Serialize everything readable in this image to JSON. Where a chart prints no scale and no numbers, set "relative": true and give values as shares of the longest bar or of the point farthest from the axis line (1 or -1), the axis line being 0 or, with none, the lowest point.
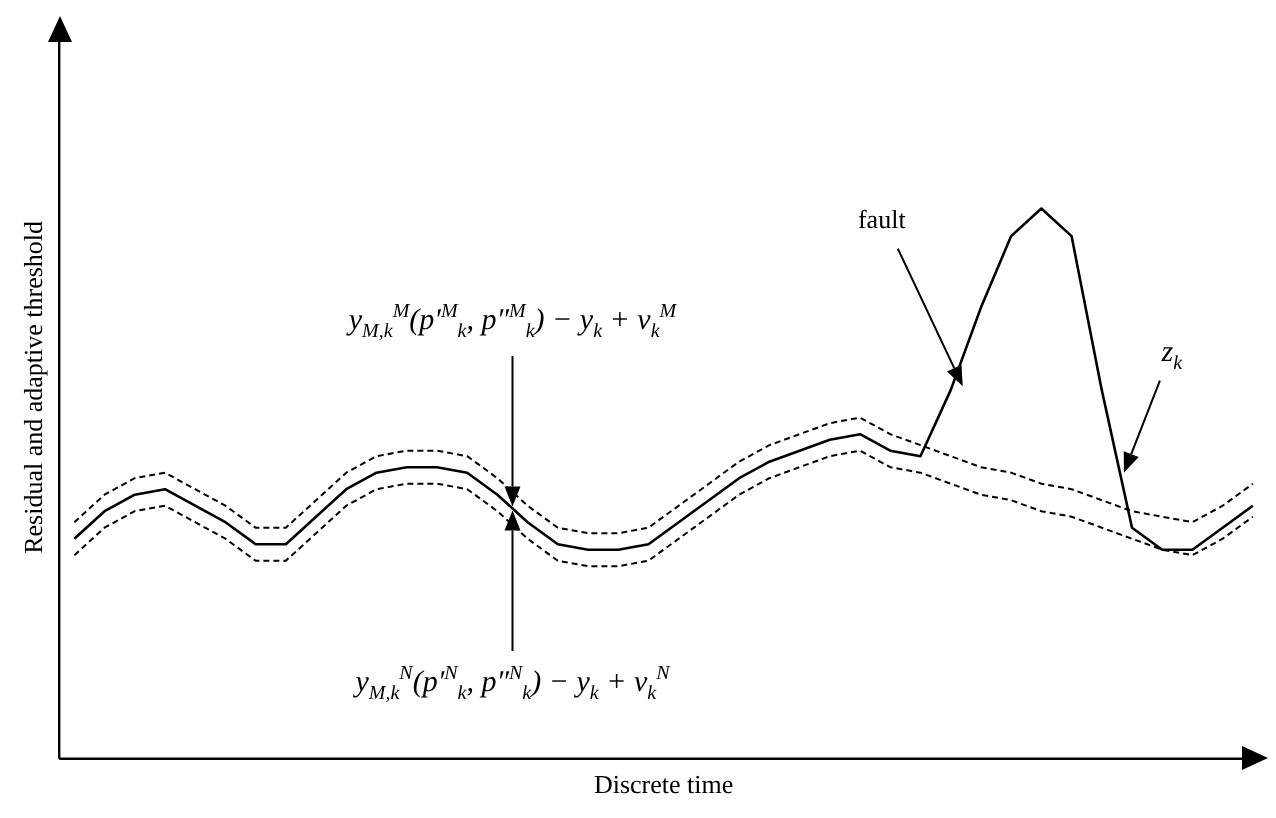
{
  "chart_data": {
    "type": "line",
    "relative": true,
    "xlabel": "Discrete time",
    "ylabel": "Residual and adaptive threshold",
    "categories": [
      null,
      null,
      null,
      null,
      null,
      null,
      null,
      null,
      null,
      null,
      null,
      null,
      null,
      null,
      null,
      null,
      null,
      null,
      null,
      null,
      null,
      null,
      null,
      null,
      null,
      null,
      null,
      null,
      null,
      null,
      null,
      null,
      null,
      null,
      null,
      null,
      null,
      null,
      null,
      null
    ],
    "series": [
      {
        "name": "z$_{k}$",
        "color": "#000000",
        "line_style": "solid",
        "values": [
          0.4,
          0.45,
          0.48,
          0.49,
          0.46,
          0.43,
          0.39,
          0.39,
          0.44,
          0.49,
          0.52,
          0.53,
          0.53,
          0.52,
          0.48,
          0.43,
          0.39,
          0.38,
          0.38,
          0.39,
          0.43,
          0.47,
          0.51,
          0.54,
          0.56,
          0.58,
          0.59,
          0.56,
          0.55,
          0.67,
          0.82,
          0.95,
          1,
          0.95,
          0.67,
          0.42,
          0.38,
          0.38,
          0.42,
          0.46
        ]
      },
      {
        "color": "#000000",
        "line_style": "dashed",
        "values": [
          0.43,
          0.48,
          0.51,
          0.52,
          0.49,
          0.46,
          0.42,
          0.42,
          0.47,
          0.52,
          0.55,
          0.56,
          0.56,
          0.55,
          0.51,
          0.46,
          0.42,
          0.41,
          0.41,
          0.42,
          0.46,
          0.5,
          0.54,
          0.57,
          0.59,
          0.61,
          0.62,
          0.59,
          0.57,
          0.55,
          0.53,
          0.52,
          0.5,
          0.49,
          0.47,
          0.45,
          0.44,
          0.43,
          0.46,
          0.5
        ]
      },
      {
        "color": "#000000",
        "line_style": "dashed",
        "values": [
          0.37,
          0.42,
          0.45,
          0.46,
          0.43,
          0.4,
          0.36,
          0.36,
          0.41,
          0.46,
          0.49,
          0.5,
          0.5,
          0.49,
          0.45,
          0.4,
          0.36,
          0.35,
          0.35,
          0.36,
          0.4,
          0.44,
          0.48,
          0.51,
          0.53,
          0.55,
          0.56,
          0.53,
          0.52,
          0.5,
          0.48,
          0.47,
          0.45,
          0.44,
          0.42,
          0.4,
          0.38,
          0.37,
          0.4,
          0.44
        ]
      }
    ],
    "annotations": [
      "fault",
      "y$_{M,k}$$^{M}$(p′$^{M}$$_{k}$, p″$^{M}$$_{k}$) − y$_{k}$ + v$_{k}$$^{M}$",
      "y$_{M,k}$$^{N}$(p′$^{N}$$_{k}$, p″$^{N}$$_{k}$) − y$_{k}$ + v$_{k}$$^{N}$"
    ],
    "marker": "none",
    "grid": false,
    "legend": false
  }
}
